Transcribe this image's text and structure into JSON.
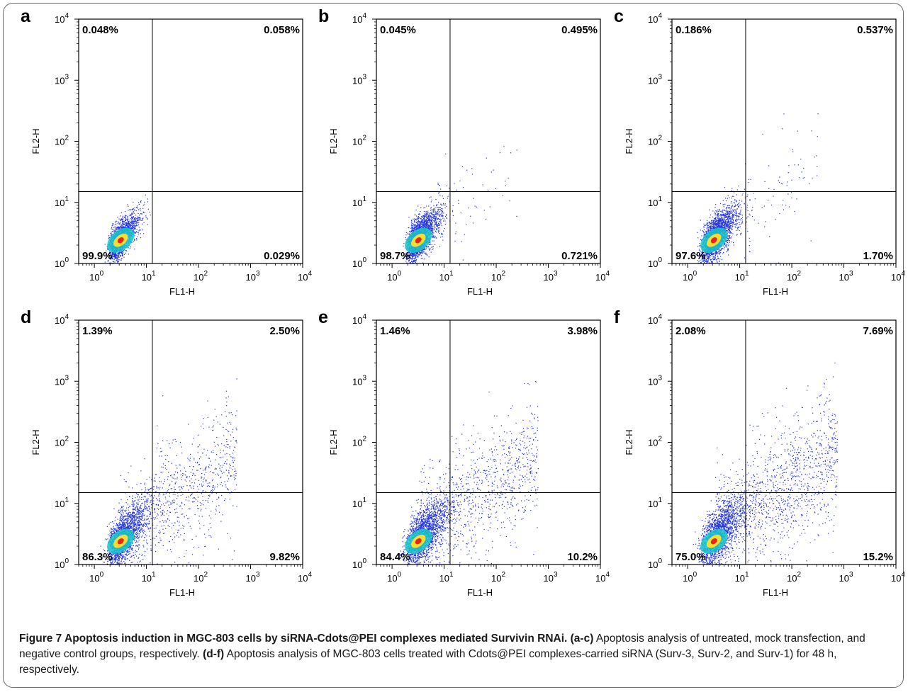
{
  "chart_data": [
    {
      "type": "scatter",
      "panel": "a",
      "xlabel": "FL1-H",
      "ylabel": "FL2-H",
      "xlim": [
        0.5,
        10000
      ],
      "ylim": [
        1,
        10000
      ],
      "x_scale": "log",
      "y_scale": "log",
      "x_ticks": [
        "10^0",
        "10^1",
        "10^2",
        "10^3",
        "10^4"
      ],
      "y_ticks": [
        "10^0",
        "10^1",
        "10^2",
        "10^3",
        "10^4"
      ],
      "gate": {
        "x": 13,
        "y": 15
      },
      "quadrants": {
        "upper_left": "0.048%",
        "upper_right": "0.058%",
        "lower_left": "99.9%",
        "lower_right": "0.029%"
      },
      "spread": 0.12,
      "tail": 0.0
    },
    {
      "type": "scatter",
      "panel": "b",
      "xlabel": "FL1-H",
      "ylabel": "FL2-H",
      "xlim": [
        0.5,
        10000
      ],
      "ylim": [
        1,
        10000
      ],
      "x_scale": "log",
      "y_scale": "log",
      "x_ticks": [
        "10^0",
        "10^1",
        "10^2",
        "10^3",
        "10^4"
      ],
      "y_ticks": [
        "10^0",
        "10^1",
        "10^2",
        "10^3",
        "10^4"
      ],
      "gate": {
        "x": 13,
        "y": 15
      },
      "quadrants": {
        "upper_left": "0.045%",
        "upper_right": "0.495%",
        "lower_left": "98.7%",
        "lower_right": "0.721%"
      },
      "spread": 0.25,
      "tail": 0.03
    },
    {
      "type": "scatter",
      "panel": "c",
      "xlabel": "FL1-H",
      "ylabel": "FL2-H",
      "xlim": [
        0.5,
        10000
      ],
      "ylim": [
        1,
        10000
      ],
      "x_scale": "log",
      "y_scale": "log",
      "x_ticks": [
        "10^0",
        "10^1",
        "10^2",
        "10^3",
        "10^4"
      ],
      "y_ticks": [
        "10^0",
        "10^1",
        "10^2",
        "10^3",
        "10^4"
      ],
      "gate": {
        "x": 13,
        "y": 15
      },
      "quadrants": {
        "upper_left": "0.186%",
        "upper_right": "0.537%",
        "lower_left": "97.6%",
        "lower_right": "1.70%"
      },
      "spread": 0.3,
      "tail": 0.05
    },
    {
      "type": "scatter",
      "panel": "d",
      "xlabel": "FL1-H",
      "ylabel": "FL2-H",
      "xlim": [
        0.5,
        10000
      ],
      "ylim": [
        1,
        10000
      ],
      "x_scale": "log",
      "y_scale": "log",
      "x_ticks": [
        "10^0",
        "10^1",
        "10^2",
        "10^3",
        "10^4"
      ],
      "y_ticks": [
        "10^0",
        "10^1",
        "10^2",
        "10^3",
        "10^4"
      ],
      "gate": {
        "x": 13,
        "y": 15
      },
      "quadrants": {
        "upper_left": "1.39%",
        "upper_right": "2.50%",
        "lower_left": "86.3%",
        "lower_right": "9.82%"
      },
      "spread": 0.45,
      "tail": 0.3
    },
    {
      "type": "scatter",
      "panel": "e",
      "xlabel": "FL1-H",
      "ylabel": "FL2-H",
      "xlim": [
        0.5,
        10000
      ],
      "ylim": [
        1,
        10000
      ],
      "x_scale": "log",
      "y_scale": "log",
      "x_ticks": [
        "10^0",
        "10^1",
        "10^2",
        "10^3",
        "10^4"
      ],
      "y_ticks": [
        "10^0",
        "10^1",
        "10^2",
        "10^3",
        "10^4"
      ],
      "gate": {
        "x": 13,
        "y": 15
      },
      "quadrants": {
        "upper_left": "1.46%",
        "upper_right": "3.98%",
        "lower_left": "84.4%",
        "lower_right": "10.2%"
      },
      "spread": 0.5,
      "tail": 0.34
    },
    {
      "type": "scatter",
      "panel": "f",
      "xlabel": "FL1-H",
      "ylabel": "FL2-H",
      "xlim": [
        0.5,
        10000
      ],
      "ylim": [
        1,
        10000
      ],
      "x_scale": "log",
      "y_scale": "log",
      "x_ticks": [
        "10^0",
        "10^1",
        "10^2",
        "10^3",
        "10^4"
      ],
      "y_ticks": [
        "10^0",
        "10^1",
        "10^2",
        "10^3",
        "10^4"
      ],
      "gate": {
        "x": 13,
        "y": 15
      },
      "quadrants": {
        "upper_left": "2.08%",
        "upper_right": "7.69%",
        "lower_left": "75.0%",
        "lower_right": "15.2%"
      },
      "spread": 0.55,
      "tail": 0.45
    }
  ],
  "caption": {
    "title": "Figure 7 Apoptosis induction in MGC-803 cells by siRNA-Cdots@PEI complexes mediated Survivin RNAi.",
    "part1_label": "(a-c)",
    "part1_text": "Apoptosis analysis of untreated, mock transfection, and negative control groups, respectively.",
    "part2_label": "(d-f)",
    "part2_text": "Apoptosis analysis of MGC-803 cells treated with Cdots@PEI complexes-carried siRNA (Surv-3, Surv-2, and Surv-1) for 48 h, respectively."
  },
  "colors": {
    "dots": "#2233dd",
    "density_mid": "#19c8c8",
    "density_high": "#ffe02a",
    "density_peak": "#e8241a",
    "axis": "#000000",
    "frame": "#6b6b6b"
  }
}
